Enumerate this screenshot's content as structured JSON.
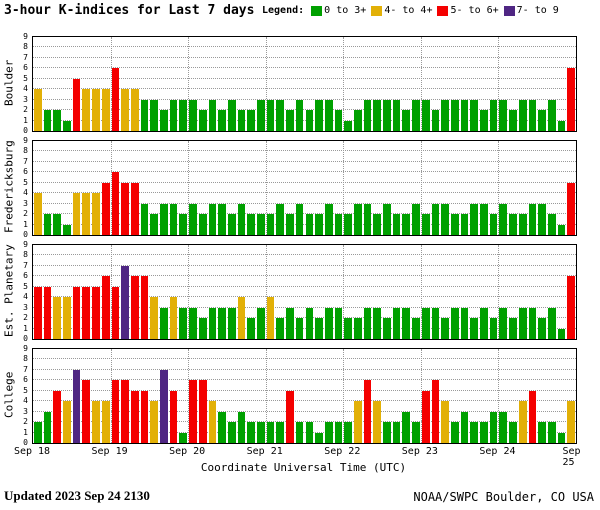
{
  "legend": {
    "label": "Legend:"
  },
  "footer": {
    "updated_label": "Updated",
    "updated_value": "2023 Sep 24 2130",
    "credit": "NOAA/SWPC Boulder, CO USA"
  },
  "chart_data": {
    "type": "bar",
    "title": "3-hour K-indices for Last 7 days",
    "xlabel": "Coordinate Universal Time (UTC)",
    "ylim": [
      0,
      9
    ],
    "grid": true,
    "legend_position": "top-right",
    "x_tick_labels": [
      "Sep 18",
      "Sep 19",
      "Sep 20",
      "Sep 21",
      "Sep 22",
      "Sep 23",
      "Sep 24",
      "Sep 25"
    ],
    "bars_per_day": 8,
    "color_rules": [
      {
        "min": 0,
        "color": "#00A000",
        "label": "0 to 3+"
      },
      {
        "min": 3.5,
        "color": "#E2B007",
        "label": "4- to 4+"
      },
      {
        "min": 4.5,
        "color": "#F40000",
        "label": "5- to 6+"
      },
      {
        "min": 6.5,
        "color": "#4F2683",
        "label": "7- to 9"
      }
    ],
    "panels": [
      {
        "station": "Boulder",
        "values": [
          4,
          2,
          2,
          1,
          5,
          4,
          4,
          4,
          6,
          4,
          4,
          3,
          3,
          2,
          3,
          3,
          3,
          2,
          3,
          2,
          3,
          2,
          2,
          3,
          3,
          3,
          2,
          3,
          2,
          3,
          3,
          2,
          1,
          2,
          3,
          3,
          3,
          3,
          2,
          3,
          3,
          2,
          3,
          3,
          3,
          3,
          2,
          3,
          3,
          2,
          3,
          3,
          2,
          3,
          1,
          6
        ]
      },
      {
        "station": "Fredericksburg",
        "values": [
          4,
          2,
          2,
          1,
          4,
          4,
          4,
          5,
          6,
          5,
          5,
          3,
          2,
          3,
          3,
          2,
          3,
          2,
          3,
          3,
          2,
          3,
          2,
          2,
          2,
          3,
          2,
          3,
          2,
          2,
          3,
          2,
          2,
          3,
          3,
          2,
          3,
          2,
          2,
          3,
          2,
          3,
          3,
          2,
          2,
          3,
          3,
          2,
          3,
          2,
          2,
          3,
          3,
          2,
          1,
          5
        ]
      },
      {
        "station": "Est. Planetary",
        "values": [
          5,
          5,
          4,
          4,
          5,
          5,
          5,
          6,
          5,
          7,
          6,
          6,
          4,
          3,
          4,
          3,
          3,
          2,
          3,
          3,
          3,
          4,
          2,
          3,
          4,
          2,
          3,
          2,
          3,
          2,
          3,
          3,
          2,
          2,
          3,
          3,
          2,
          3,
          3,
          2,
          3,
          3,
          2,
          3,
          3,
          2,
          3,
          2,
          3,
          2,
          3,
          3,
          2,
          3,
          1,
          6
        ]
      },
      {
        "station": "College",
        "values": [
          2,
          3,
          5,
          4,
          7,
          6,
          4,
          4,
          6,
          6,
          5,
          5,
          4,
          7,
          5,
          1,
          6,
          6,
          4,
          3,
          2,
          3,
          2,
          2,
          2,
          2,
          5,
          2,
          2,
          1,
          2,
          2,
          2,
          4,
          6,
          4,
          2,
          2,
          3,
          2,
          5,
          6,
          4,
          2,
          3,
          2,
          2,
          3,
          3,
          2,
          4,
          5,
          2,
          2,
          1,
          4
        ]
      }
    ]
  }
}
